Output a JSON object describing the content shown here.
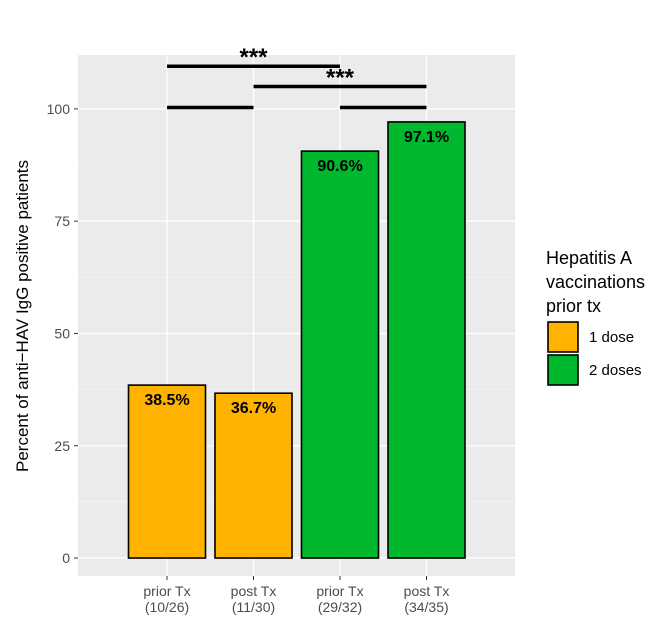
{
  "chart_data": {
    "type": "bar",
    "ylabel": "Percent of anti−HAV IgG positive patients",
    "xlabel": "",
    "ylim": [
      -4,
      112
    ],
    "yticks": [
      0,
      25,
      50,
      75,
      100
    ],
    "grid": true,
    "categories": [
      {
        "line1": "prior Tx",
        "line2": "(10/26)"
      },
      {
        "line1": "post Tx",
        "line2": "(11/30)"
      },
      {
        "line1": "prior Tx",
        "line2": "(29/32)"
      },
      {
        "line1": "post Tx",
        "line2": "(34/35)"
      }
    ],
    "values": [
      38.5,
      36.7,
      90.6,
      97.1
    ],
    "data_labels": [
      "38.5%",
      "36.7%",
      "90.6%",
      "97.1%"
    ],
    "groups": [
      "1 dose",
      "1 dose",
      "2 doses",
      "2 doses"
    ],
    "colors": {
      "1 dose": "#FFB300",
      "2 doses": "#00B82E"
    },
    "legend": {
      "title": [
        "Hepatitis A",
        "vaccinations",
        "prior tx"
      ],
      "position": "right",
      "items": [
        "1 dose",
        "2 doses"
      ]
    },
    "significance": [
      {
        "from": 0,
        "to": 2,
        "label": "***",
        "level": 109.5
      },
      {
        "from": 1,
        "to": 3,
        "label": "***",
        "level": 105
      }
    ],
    "group_brackets": [
      {
        "from": 0,
        "to": 1,
        "level": 100.3
      },
      {
        "from": 2,
        "to": 3,
        "level": 100.3
      }
    ]
  }
}
